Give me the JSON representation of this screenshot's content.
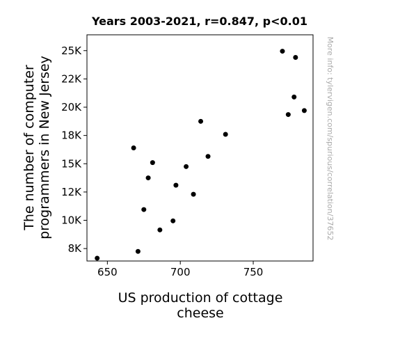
{
  "chart_data": {
    "type": "scatter",
    "title": "Years 2003-2021, r=0.847, p<0.01",
    "xlabel_lines": [
      "US production of cottage",
      "cheese"
    ],
    "ylabel_lines": [
      "The number of computer",
      "programmers in New Jersey"
    ],
    "watermark": "More info: tylervigen.com/spurious/correlation/37652",
    "xlim": [
      636,
      791
    ],
    "ylim": [
      6400,
      26400
    ],
    "x_ticks": [
      {
        "value": 650,
        "label": "650"
      },
      {
        "value": 700,
        "label": "700"
      },
      {
        "value": 750,
        "label": "750"
      }
    ],
    "y_ticks": [
      {
        "value": 7500,
        "label": "8K"
      },
      {
        "value": 10000,
        "label": "10K"
      },
      {
        "value": 12500,
        "label": "12K"
      },
      {
        "value": 15000,
        "label": "15K"
      },
      {
        "value": 17500,
        "label": "18K"
      },
      {
        "value": 20000,
        "label": "20K"
      },
      {
        "value": 22500,
        "label": "22K"
      },
      {
        "value": 25000,
        "label": "25K"
      }
    ],
    "grid": false,
    "marker_color": "#000000",
    "points": [
      {
        "x": 643,
        "y": 6650
      },
      {
        "x": 668,
        "y": 16400
      },
      {
        "x": 671,
        "y": 7250
      },
      {
        "x": 675,
        "y": 10950
      },
      {
        "x": 678,
        "y": 13750
      },
      {
        "x": 681,
        "y": 15100
      },
      {
        "x": 686,
        "y": 9150
      },
      {
        "x": 695,
        "y": 9950
      },
      {
        "x": 697,
        "y": 13100
      },
      {
        "x": 704,
        "y": 14750
      },
      {
        "x": 709,
        "y": 12300
      },
      {
        "x": 714,
        "y": 18750
      },
      {
        "x": 719,
        "y": 15650
      },
      {
        "x": 731,
        "y": 17600
      },
      {
        "x": 770,
        "y": 24950
      },
      {
        "x": 774,
        "y": 19350
      },
      {
        "x": 778,
        "y": 20900
      },
      {
        "x": 779,
        "y": 24400
      },
      {
        "x": 785,
        "y": 19700
      }
    ]
  }
}
